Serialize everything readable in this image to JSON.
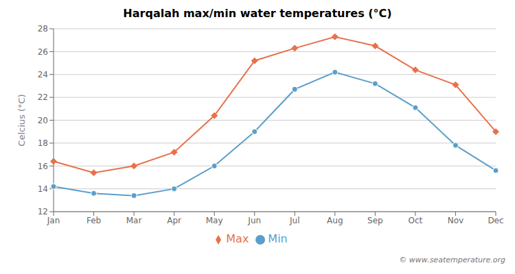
{
  "chart_data": {
    "type": "line",
    "title": "Harqalah max/min water temperatures (°C)",
    "y_label": "Celcius (°C)",
    "categories": [
      "Jan",
      "Feb",
      "Mar",
      "Apr",
      "May",
      "Jun",
      "Jul",
      "Aug",
      "Sep",
      "Oct",
      "Nov",
      "Dec"
    ],
    "series": [
      {
        "name": "Max",
        "color": "#e8714a",
        "marker": "diamond",
        "values": [
          16.4,
          15.4,
          16.0,
          17.2,
          20.4,
          25.2,
          26.3,
          27.3,
          26.5,
          24.4,
          23.1,
          19.0
        ]
      },
      {
        "name": "Min",
        "color": "#5b9ec9",
        "marker": "circle",
        "values": [
          14.2,
          13.6,
          13.4,
          14.0,
          16.0,
          19.0,
          22.7,
          24.2,
          23.2,
          21.1,
          17.8,
          15.6
        ]
      }
    ],
    "ylim": [
      12,
      28
    ],
    "yticks": [
      12,
      14,
      16,
      18,
      20,
      22,
      24,
      26,
      28
    ],
    "grid": true,
    "legend": "bottom",
    "annotations": [
      "© www.seatemperature.org"
    ]
  }
}
